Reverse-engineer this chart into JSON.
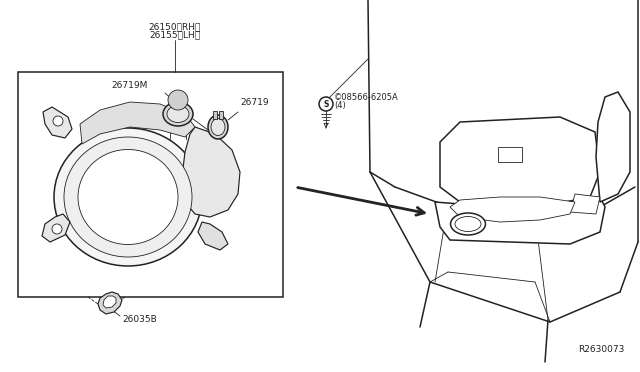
{
  "bg_color": "#ffffff",
  "line_color": "#222222",
  "part_numbers": {
    "fog_lamp_rh": "26150＜RH＞",
    "fog_lamp_lh": "26155＜LH＞",
    "bulb_socket_m": "26719M",
    "bulb_socket": "26719",
    "screw_label1": "©08566-6205A",
    "screw_label2": "(4)",
    "bracket": "26035B"
  },
  "diagram_ref": "R2630073",
  "fig_width": 6.4,
  "fig_height": 3.72,
  "dpi": 100
}
